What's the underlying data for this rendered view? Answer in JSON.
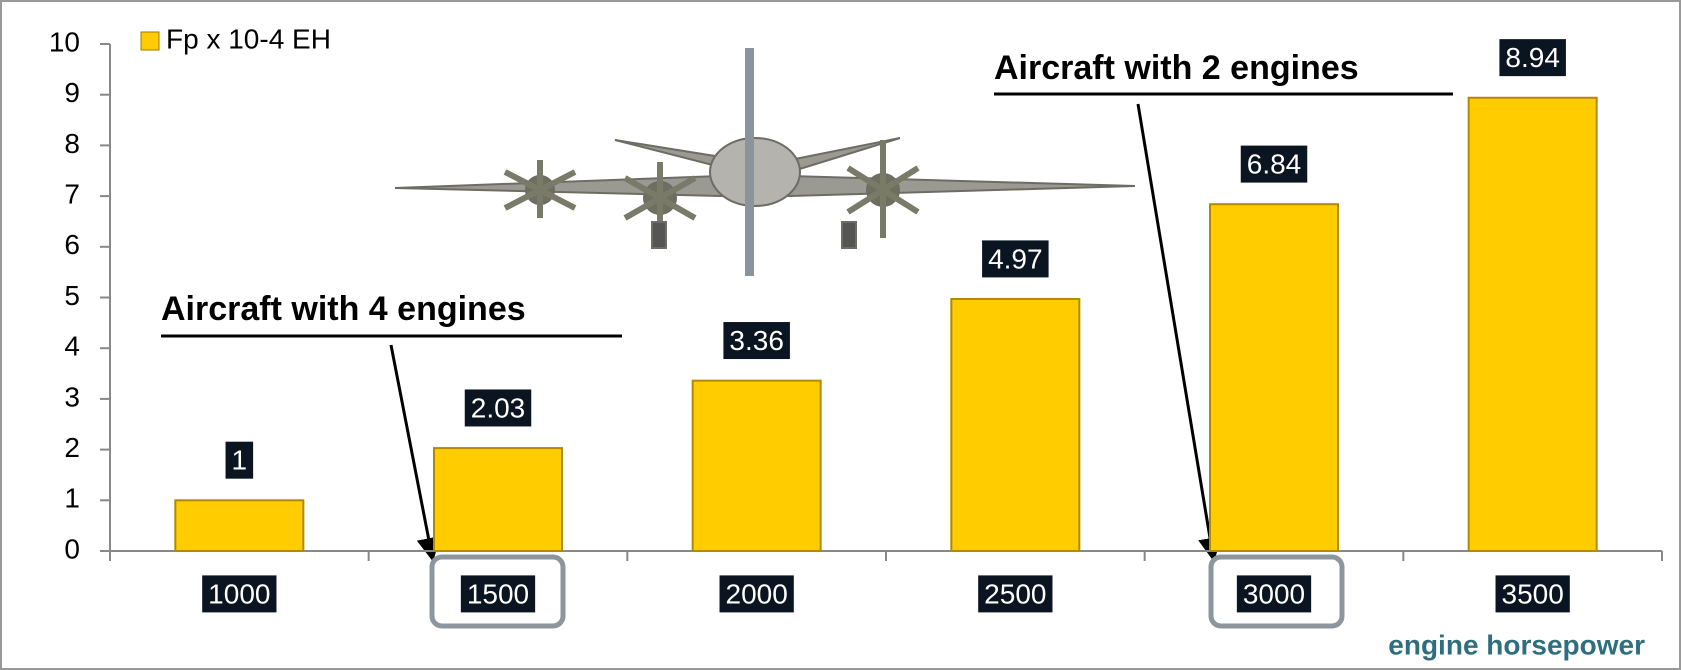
{
  "chart_data": {
    "type": "bar",
    "legend_label": "Fp x 10-4 EH",
    "x_label": "engine horsepower",
    "annotations": [
      "Aircraft with 4 engines",
      "Aircraft with 2 engines"
    ],
    "categories": [
      "1000",
      "1500",
      "2000",
      "2500",
      "3000",
      "3500"
    ],
    "values": [
      1,
      2.03,
      3.36,
      4.97,
      6.84,
      8.94
    ],
    "color": "#ffcc00",
    "ylim": [
      0,
      10
    ],
    "yticks": [
      0,
      1,
      2,
      3,
      4,
      5,
      6,
      7,
      8,
      9,
      10
    ]
  }
}
